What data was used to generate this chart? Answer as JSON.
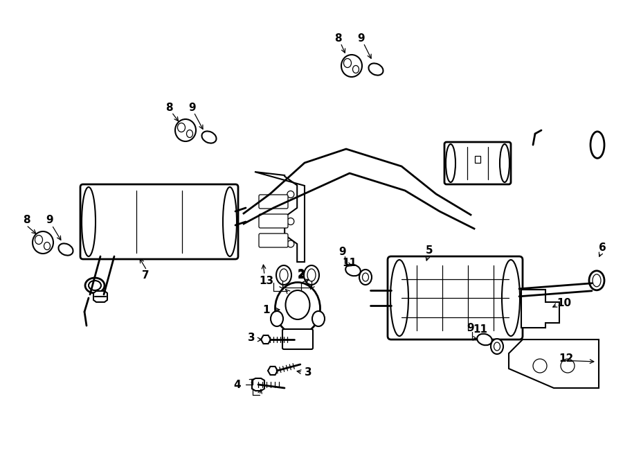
{
  "bg_color": "#ffffff",
  "fig_width": 9.0,
  "fig_height": 6.61,
  "dpi": 100,
  "lw_main": 1.5,
  "lw_thin": 0.9,
  "lw_thick": 2.0
}
